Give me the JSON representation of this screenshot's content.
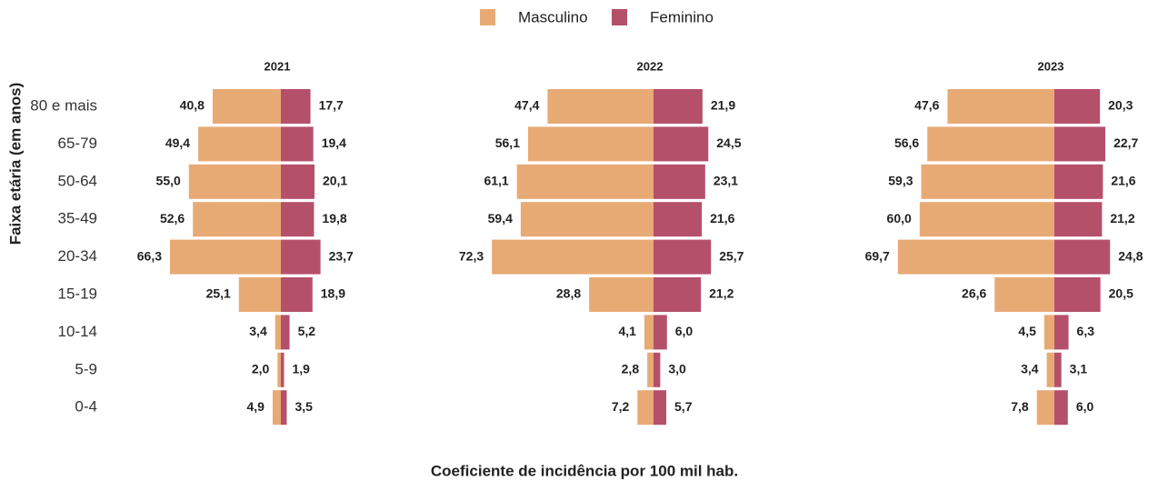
{
  "chart_data": [
    {
      "type": "bar",
      "title": "2021",
      "ylabel": "Faixa etária (em anos)",
      "xlabel": "Coeficiente de incidência por 100 mil hab.",
      "categories": [
        "80 e mais",
        "65-79",
        "50-64",
        "35-49",
        "20-34",
        "15-19",
        "10-14",
        "5-9",
        "0-4"
      ],
      "series": [
        {
          "name": "Masculino",
          "color": "#e8aa75",
          "values": [
            40.8,
            49.4,
            55.0,
            52.6,
            66.3,
            25.1,
            3.4,
            2.0,
            4.9
          ],
          "value_labels": [
            "40,8",
            "49,4",
            "55,0",
            "52,6",
            "66,3",
            "25,1",
            "3,4",
            "2,0",
            "4,9"
          ]
        },
        {
          "name": "Feminino",
          "color": "#b5506b",
          "values": [
            17.7,
            19.4,
            20.1,
            19.8,
            23.7,
            18.9,
            5.2,
            1.9,
            3.5
          ],
          "value_labels": [
            "17,7",
            "19,4",
            "20,1",
            "19,8",
            "23,7",
            "18,9",
            "5,2",
            "1,9",
            "3,5"
          ]
        }
      ]
    },
    {
      "type": "bar",
      "title": "2022",
      "series": [
        {
          "name": "Masculino",
          "color": "#e8aa75",
          "values": [
            47.4,
            56.1,
            61.1,
            59.4,
            72.3,
            28.8,
            4.1,
            2.8,
            7.2
          ],
          "value_labels": [
            "47,4",
            "56,1",
            "61,1",
            "59,4",
            "72,3",
            "28,8",
            "4,1",
            "2,8",
            "7,2"
          ]
        },
        {
          "name": "Feminino",
          "color": "#b5506b",
          "values": [
            21.9,
            24.5,
            23.1,
            21.6,
            25.7,
            21.2,
            6.0,
            3.0,
            5.7
          ],
          "value_labels": [
            "21,9",
            "24,5",
            "23,1",
            "21,6",
            "25,7",
            "21,2",
            "6,0",
            "3,0",
            "5,7"
          ]
        }
      ]
    },
    {
      "type": "bar",
      "title": "2023",
      "series": [
        {
          "name": "Masculino",
          "color": "#e8aa75",
          "values": [
            47.6,
            56.6,
            59.3,
            60.0,
            69.7,
            26.6,
            4.5,
            3.4,
            7.8
          ],
          "value_labels": [
            "47,6",
            "56,6",
            "59,3",
            "60,0",
            "69,7",
            "26,6",
            "4,5",
            "3,4",
            "7,8"
          ]
        },
        {
          "name": "Feminino",
          "color": "#b5506b",
          "values": [
            20.3,
            22.7,
            21.6,
            21.2,
            24.8,
            20.5,
            6.3,
            3.1,
            6.0
          ],
          "value_labels": [
            "20,3",
            "22,7",
            "21,6",
            "21,2",
            "24,8",
            "20,5",
            "6,3",
            "3,1",
            "6,0"
          ]
        }
      ]
    }
  ]
}
